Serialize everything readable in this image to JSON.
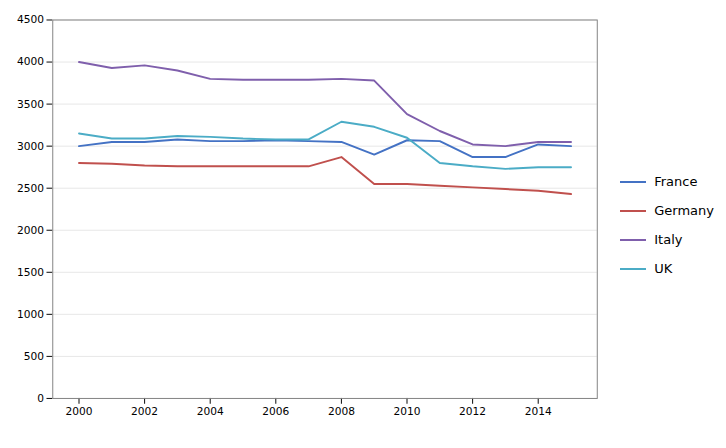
{
  "chart_data": {
    "type": "line",
    "x": [
      2000,
      2001,
      2002,
      2003,
      2004,
      2005,
      2006,
      2007,
      2008,
      2009,
      2010,
      2011,
      2012,
      2013,
      2014,
      2015
    ],
    "series": [
      {
        "name": "France",
        "color": "#4472c4",
        "values": [
          3000,
          3050,
          3050,
          3080,
          3060,
          3060,
          3070,
          3060,
          3050,
          2900,
          3070,
          3060,
          2870,
          2870,
          3020,
          3000
        ]
      },
      {
        "name": "Germany",
        "color": "#c0504d",
        "values": [
          2800,
          2790,
          2770,
          2760,
          2760,
          2760,
          2760,
          2760,
          2870,
          2550,
          2550,
          2530,
          2510,
          2490,
          2470,
          2430
        ]
      },
      {
        "name": "Italy",
        "color": "#7f5fac",
        "values": [
          4000,
          3930,
          3960,
          3900,
          3800,
          3790,
          3790,
          3790,
          3800,
          3780,
          3380,
          3180,
          3020,
          3000,
          3050,
          3050
        ]
      },
      {
        "name": "UK",
        "color": "#4bacc6",
        "values": [
          3150,
          3090,
          3090,
          3120,
          3110,
          3090,
          3080,
          3080,
          3290,
          3230,
          3100,
          2800,
          2760,
          2730,
          2750,
          2750
        ]
      }
    ],
    "xlim": [
      1999.2,
      2015.8
    ],
    "xticks": [
      2000,
      2002,
      2004,
      2006,
      2008,
      2010,
      2012,
      2014
    ],
    "ylim": [
      0,
      4500
    ],
    "yticks": [
      0,
      500,
      1000,
      1500,
      2000,
      2500,
      3000,
      3500,
      4000,
      4500
    ],
    "grid": true,
    "legend": "right"
  }
}
